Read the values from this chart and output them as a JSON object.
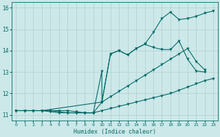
{
  "xlabel": "Humidex (Indice chaleur)",
  "bg_color": "#cce8e8",
  "line_color": "#006868",
  "grid_color": "#b0cccc",
  "xlim": [
    -0.5,
    23.5
  ],
  "ylim": [
    10.75,
    16.25
  ],
  "xticks": [
    0,
    1,
    2,
    3,
    4,
    5,
    6,
    7,
    8,
    9,
    10,
    11,
    12,
    13,
    14,
    15,
    16,
    17,
    18,
    19,
    20,
    21,
    22,
    23
  ],
  "yticks": [
    11,
    12,
    13,
    14,
    15,
    16
  ],
  "series": [
    {
      "x": [
        0,
        1,
        2,
        3,
        4,
        5,
        6,
        7,
        8,
        9,
        10,
        11,
        12,
        13,
        14,
        15,
        16,
        17,
        18,
        19,
        20,
        21,
        22,
        23
      ],
      "y": [
        11.2,
        11.2,
        11.2,
        11.2,
        11.15,
        11.1,
        11.1,
        11.1,
        11.1,
        11.1,
        11.2,
        11.3,
        11.4,
        11.5,
        11.6,
        11.7,
        11.8,
        11.9,
        12.0,
        12.15,
        12.3,
        12.45,
        12.6,
        12.7
      ]
    },
    {
      "x": [
        0,
        1,
        2,
        3,
        4,
        5,
        6,
        7,
        8,
        9,
        10,
        11,
        12,
        13,
        14,
        15,
        16,
        17,
        18,
        19,
        20,
        21,
        22,
        23
      ],
      "y": [
        11.2,
        11.2,
        11.2,
        11.2,
        11.2,
        11.2,
        11.2,
        11.15,
        11.1,
        11.1,
        11.6,
        11.85,
        12.1,
        12.35,
        12.6,
        12.85,
        13.1,
        13.35,
        13.6,
        13.85,
        14.1,
        13.5,
        13.1,
        null
      ]
    },
    {
      "x": [
        0,
        1,
        2,
        3,
        4,
        5,
        6,
        7,
        8,
        9,
        10,
        10,
        11,
        12,
        13,
        14,
        15,
        16,
        17,
        18,
        19,
        20,
        21,
        22,
        23
      ],
      "y": [
        11.2,
        11.2,
        11.2,
        11.2,
        11.2,
        11.15,
        11.1,
        11.1,
        11.1,
        11.1,
        13.05,
        11.6,
        13.85,
        14.0,
        13.8,
        14.1,
        14.3,
        14.15,
        14.05,
        14.05,
        14.45,
        13.6,
        13.05,
        13.0,
        null
      ]
    },
    {
      "x": [
        3,
        10,
        11,
        12,
        13,
        14,
        15,
        16,
        17,
        18,
        19,
        20,
        21,
        22,
        23
      ],
      "y": [
        11.2,
        11.6,
        13.85,
        14.0,
        13.8,
        14.1,
        14.3,
        14.85,
        15.5,
        15.8,
        15.45,
        15.5,
        15.6,
        15.75,
        15.85
      ]
    }
  ],
  "markersize": 2.5,
  "linewidth": 0.8
}
